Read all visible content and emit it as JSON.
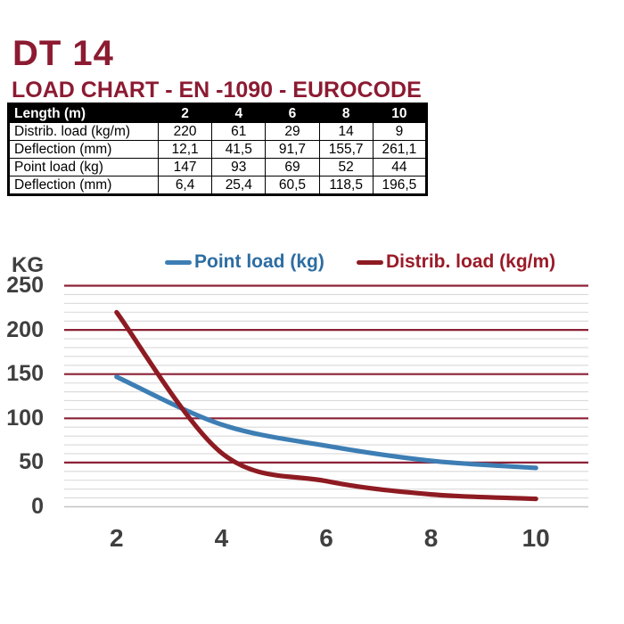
{
  "title": "DT 14",
  "subtitle": "LOAD CHART - EN -1090 - EUROCODE",
  "colors": {
    "brand": "#8C1B32",
    "table_header_bg": "#000000",
    "table_header_text": "#FFFFFF",
    "axis_label": "#3F3F3F",
    "grid_major": "#8C2136",
    "grid_minor": "#D9D9D9",
    "grid_zero": "#C3C3C3"
  },
  "table": {
    "header": [
      "Length (m)",
      "2",
      "4",
      "6",
      "8",
      "10"
    ],
    "rows": [
      [
        "Distrib. load (kg/m)",
        "220",
        "61",
        "29",
        "14",
        "9"
      ],
      [
        "Deflection (mm)",
        "12,1",
        "41,5",
        "91,7",
        "155,7",
        "261,1"
      ],
      [
        "Point load (kg)",
        "147",
        "93",
        "69",
        "52",
        "44"
      ],
      [
        "Deflection (mm)",
        "6,4",
        "25,4",
        "60,5",
        "118,5",
        "196,5"
      ]
    ]
  },
  "chart_data": {
    "type": "line",
    "x": [
      2,
      4,
      6,
      8,
      10
    ],
    "series": [
      {
        "name": "Point load (kg)",
        "values": [
          147,
          93,
          69,
          52,
          44
        ],
        "color": "#3D7EB4",
        "text_color": "#2D6DA2"
      },
      {
        "name": "Distrib. load (kg/m)",
        "values": [
          220,
          61,
          29,
          14,
          9
        ],
        "color": "#8E1B22",
        "text_color": "#9A1B28"
      }
    ],
    "title": "",
    "xlabel": "",
    "ylabel": "KG",
    "ylim": [
      0,
      250
    ],
    "yticks": [
      0,
      50,
      100,
      150,
      200,
      250
    ],
    "xticks": [
      2,
      4,
      6,
      8,
      10
    ],
    "minor_grid_step": 10,
    "grid": "horizontal",
    "legend_position": "top",
    "smooth": true
  }
}
